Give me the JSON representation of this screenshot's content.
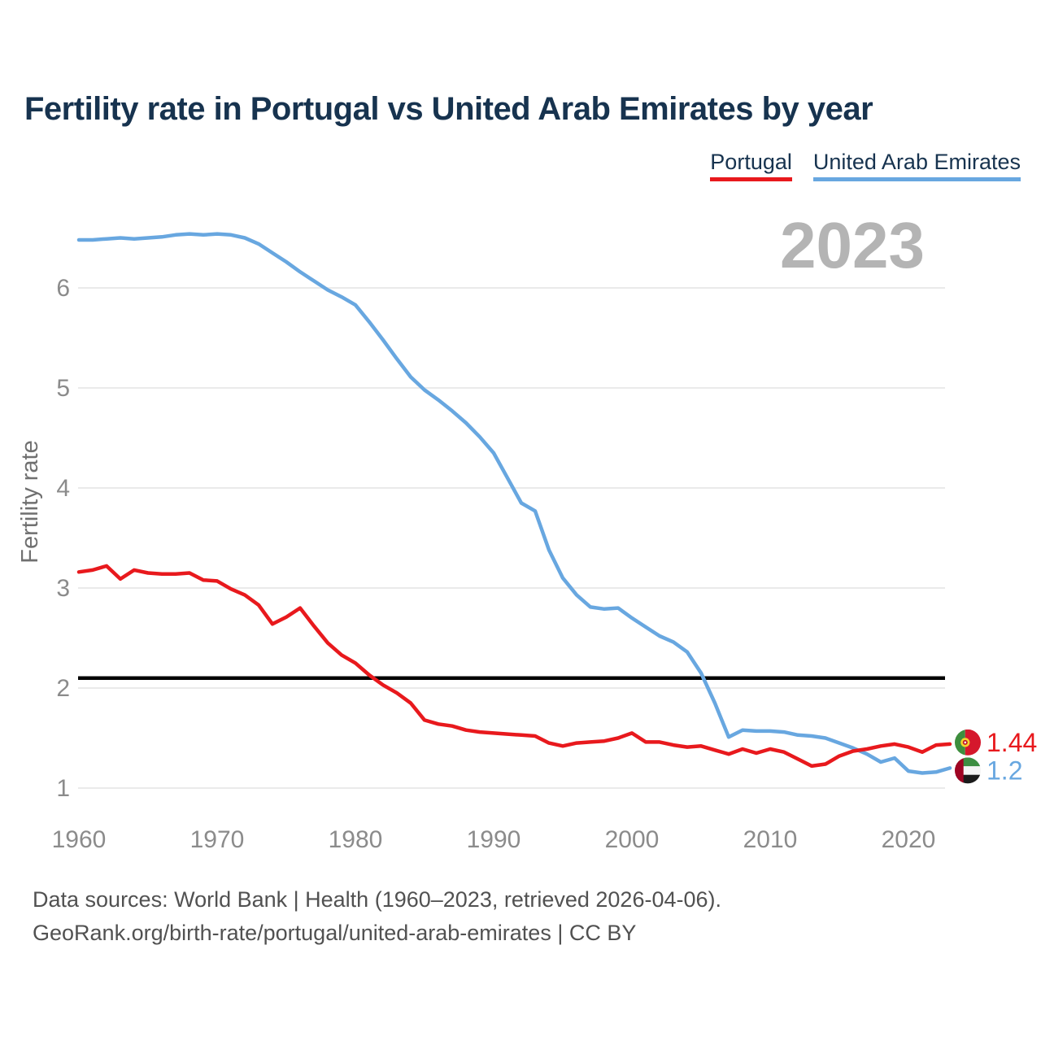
{
  "header": {
    "title": "Fertility rate in Portugal vs United Arab Emirates by year"
  },
  "legend": [
    {
      "label": "Portugal",
      "color": "#e8191d"
    },
    {
      "label": "United Arab Emirates",
      "color": "#68a7e0"
    }
  ],
  "watermark": "2023",
  "chart_data": {
    "type": "line",
    "title": "Fertility rate in Portugal vs United Arab Emirates by year",
    "xlabel": "",
    "ylabel": "Fertility rate",
    "years": {
      "start": 1960,
      "end": 2023
    },
    "x_ticks": [
      1960,
      1970,
      1980,
      1990,
      2000,
      2010,
      2020
    ],
    "y_ticks": [
      1,
      2,
      3,
      4,
      5,
      6
    ],
    "ylim": [
      0.7,
      6.8
    ],
    "grid": "horizontal",
    "legend_position": "top-right",
    "watermark": "2023",
    "reference_line": {
      "value": 2.1,
      "color": "#000000"
    },
    "series": [
      {
        "name": "Portugal",
        "color": "#e8191d",
        "flag_icon": "portugal-flag-icon",
        "end_label": "1.44",
        "values": [
          3.16,
          3.18,
          3.22,
          3.09,
          3.18,
          3.15,
          3.14,
          3.14,
          3.15,
          3.08,
          3.07,
          2.99,
          2.93,
          2.83,
          2.64,
          2.71,
          2.8,
          2.62,
          2.45,
          2.33,
          2.25,
          2.13,
          2.03,
          1.95,
          1.85,
          1.68,
          1.64,
          1.62,
          1.58,
          1.56,
          1.55,
          1.54,
          1.53,
          1.52,
          1.45,
          1.42,
          1.45,
          1.46,
          1.47,
          1.5,
          1.55,
          1.46,
          1.46,
          1.43,
          1.41,
          1.42,
          1.38,
          1.34,
          1.39,
          1.35,
          1.39,
          1.36,
          1.29,
          1.22,
          1.24,
          1.32,
          1.37,
          1.39,
          1.42,
          1.44,
          1.41,
          1.36,
          1.43,
          1.44
        ]
      },
      {
        "name": "United Arab Emirates",
        "color": "#68a7e0",
        "flag_icon": "uae-flag-icon",
        "end_label": "1.2",
        "values": [
          6.48,
          6.48,
          6.49,
          6.5,
          6.49,
          6.5,
          6.51,
          6.53,
          6.54,
          6.53,
          6.54,
          6.53,
          6.5,
          6.44,
          6.35,
          6.26,
          6.16,
          6.07,
          5.98,
          5.91,
          5.83,
          5.66,
          5.48,
          5.29,
          5.11,
          4.98,
          4.88,
          4.77,
          4.65,
          4.51,
          4.35,
          4.1,
          3.85,
          3.77,
          3.38,
          3.1,
          2.93,
          2.81,
          2.79,
          2.8,
          2.7,
          2.61,
          2.52,
          2.46,
          2.36,
          2.15,
          1.85,
          1.51,
          1.58,
          1.57,
          1.57,
          1.56,
          1.53,
          1.52,
          1.5,
          1.45,
          1.4,
          1.34,
          1.26,
          1.3,
          1.17,
          1.15,
          1.16,
          1.2
        ]
      }
    ]
  },
  "footer": {
    "line1": "Data sources: World Bank | Health (1960–2023, retrieved 2026-04-06).",
    "line2": "GeoRank.org/birth-rate/portugal/united-arab-emirates | CC BY"
  }
}
